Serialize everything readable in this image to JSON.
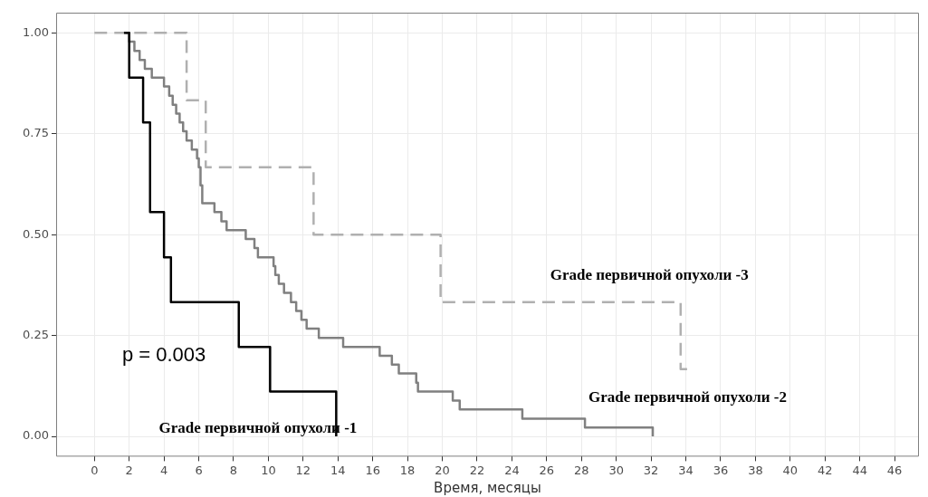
{
  "chart_data": {
    "type": "step",
    "xlabel": "Время, месяцы",
    "xlim": [
      -2.2,
      47.4
    ],
    "ylim": [
      -0.05,
      1.05
    ],
    "xticks": [
      0,
      2,
      4,
      6,
      8,
      10,
      12,
      14,
      16,
      18,
      20,
      22,
      24,
      26,
      28,
      30,
      32,
      34,
      36,
      38,
      40,
      42,
      44,
      46
    ],
    "yticks": [
      {
        "value": 0,
        "label": "0.00"
      },
      {
        "value": 0.25,
        "label": "0.25"
      },
      {
        "value": 0.5,
        "label": "0.50"
      },
      {
        "value": 0.75,
        "label": "0.75"
      },
      {
        "value": 1,
        "label": "1.00"
      }
    ],
    "grid": true,
    "legend": false,
    "annotations": [
      "p = 0.003"
    ],
    "series": [
      {
        "name": "Grade первичной опухоли -1",
        "color": "#000000",
        "line_style": "solid",
        "x": [
          1.7,
          2.0,
          2.8,
          3.2,
          4.0,
          4.4,
          8.3,
          10.1,
          13.9
        ],
        "values": [
          1,
          0.889,
          0.778,
          0.556,
          0.444,
          0.333,
          0.222,
          0.111,
          0
        ]
      },
      {
        "name": "Grade первичной опухоли -2",
        "color": "#808080",
        "line_style": "solid",
        "x": [
          1.8,
          2.0,
          2.3,
          2.6,
          2.9,
          3.3,
          4.0,
          4.3,
          4.5,
          4.7,
          4.9,
          5.1,
          5.3,
          5.6,
          5.9,
          6.0,
          6.1,
          6.2,
          6.9,
          7.3,
          7.6,
          8.7,
          9.2,
          9.4,
          10.3,
          10.4,
          10.6,
          10.9,
          11.3,
          11.6,
          11.9,
          12.2,
          12.9,
          14.3,
          16.4,
          17.1,
          17.5,
          18.5,
          18.6,
          20.6,
          21.0,
          24.6,
          28.2,
          32.1
        ],
        "values": [
          1,
          0.978,
          0.955,
          0.933,
          0.911,
          0.889,
          0.867,
          0.844,
          0.822,
          0.8,
          0.778,
          0.756,
          0.733,
          0.711,
          0.689,
          0.667,
          0.622,
          0.578,
          0.556,
          0.533,
          0.511,
          0.489,
          0.467,
          0.444,
          0.422,
          0.4,
          0.378,
          0.356,
          0.333,
          0.311,
          0.289,
          0.267,
          0.244,
          0.222,
          0.2,
          0.178,
          0.156,
          0.133,
          0.111,
          0.089,
          0.067,
          0.044,
          0.022,
          0
        ]
      },
      {
        "name": "Grade первичной опухоли -3",
        "color": "#b0b0b0",
        "line_style": "dashed",
        "x": [
          0,
          5.3,
          6.4,
          12.6,
          19.9,
          33.7,
          34.1
        ],
        "values": [
          1,
          0.833,
          0.667,
          0.5,
          0.333,
          0.167,
          0.167
        ]
      }
    ]
  }
}
